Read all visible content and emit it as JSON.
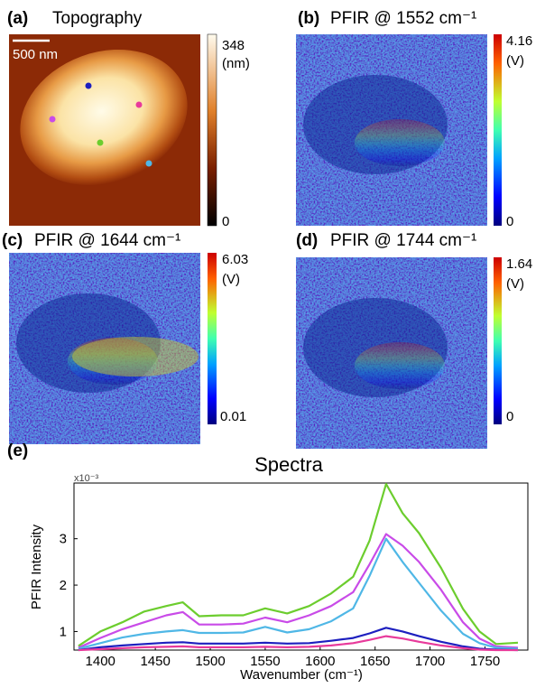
{
  "panels": [
    {
      "label": "(a)",
      "title": "Topography",
      "scale_bar": "500 nm",
      "colorbar": {
        "max": 348,
        "unit": "(nm)",
        "min": 0
      }
    },
    {
      "label": "(b)",
      "title": "PFIR @ 1552 cm⁻¹",
      "colorbar": {
        "max": 4.16,
        "unit": "(V)",
        "min": 0
      }
    },
    {
      "label": "(c)",
      "title": "PFIR @ 1644 cm⁻¹",
      "colorbar": {
        "max": 6.03,
        "unit": "(V)",
        "min": 0.01
      }
    },
    {
      "label": "(d)",
      "title": "PFIR @ 1744 cm⁻¹",
      "colorbar": {
        "max": 1.64,
        "unit": "(V)",
        "min": 0
      }
    }
  ],
  "chart_data": {
    "type": "line",
    "label": "(e)",
    "title": "Spectra",
    "xlabel": "Wavenumber (cm⁻¹)",
    "ylabel": "PFIR Intensity",
    "y_multiplier": "x10⁻³",
    "x": [
      1380,
      1400,
      1420,
      1440,
      1460,
      1475,
      1490,
      1510,
      1530,
      1550,
      1570,
      1590,
      1610,
      1630,
      1645,
      1660,
      1675,
      1690,
      1710,
      1730,
      1745,
      1760,
      1780
    ],
    "xlim": [
      1376,
      1789
    ],
    "xticks": [
      1400,
      1450,
      1500,
      1550,
      1600,
      1650,
      1700,
      1750
    ],
    "ylim": [
      0.6,
      4.2
    ],
    "yticks": [
      1,
      2,
      3
    ],
    "series": [
      {
        "color": "#6ccd2e",
        "values": [
          0.69,
          1.0,
          1.2,
          1.43,
          1.55,
          1.63,
          1.33,
          1.35,
          1.35,
          1.5,
          1.39,
          1.55,
          1.82,
          2.18,
          2.96,
          4.18,
          3.55,
          3.12,
          2.37,
          1.49,
          1.0,
          0.73,
          0.76
        ]
      },
      {
        "color": "#c94be8",
        "values": [
          0.65,
          0.86,
          1.05,
          1.2,
          1.35,
          1.42,
          1.15,
          1.15,
          1.17,
          1.3,
          1.2,
          1.35,
          1.55,
          1.85,
          2.45,
          3.1,
          2.85,
          2.5,
          1.9,
          1.2,
          0.85,
          0.68,
          0.65
        ]
      },
      {
        "color": "#4fb7e6",
        "values": [
          0.63,
          0.75,
          0.87,
          0.95,
          1.0,
          1.03,
          0.97,
          0.97,
          0.98,
          1.1,
          0.98,
          1.05,
          1.22,
          1.5,
          2.2,
          3.0,
          2.5,
          2.05,
          1.45,
          0.95,
          0.75,
          0.65,
          0.63
        ]
      },
      {
        "color": "#1d1fbf",
        "values": [
          0.6,
          0.66,
          0.7,
          0.73,
          0.76,
          0.77,
          0.74,
          0.74,
          0.74,
          0.76,
          0.74,
          0.75,
          0.8,
          0.86,
          0.96,
          1.08,
          1.0,
          0.9,
          0.78,
          0.68,
          0.63,
          0.61,
          0.6
        ]
      },
      {
        "color": "#e83a9b",
        "values": [
          0.6,
          0.62,
          0.64,
          0.66,
          0.67,
          0.68,
          0.66,
          0.66,
          0.66,
          0.67,
          0.66,
          0.67,
          0.7,
          0.75,
          0.82,
          0.9,
          0.85,
          0.78,
          0.7,
          0.64,
          0.61,
          0.6,
          0.6
        ]
      }
    ]
  }
}
